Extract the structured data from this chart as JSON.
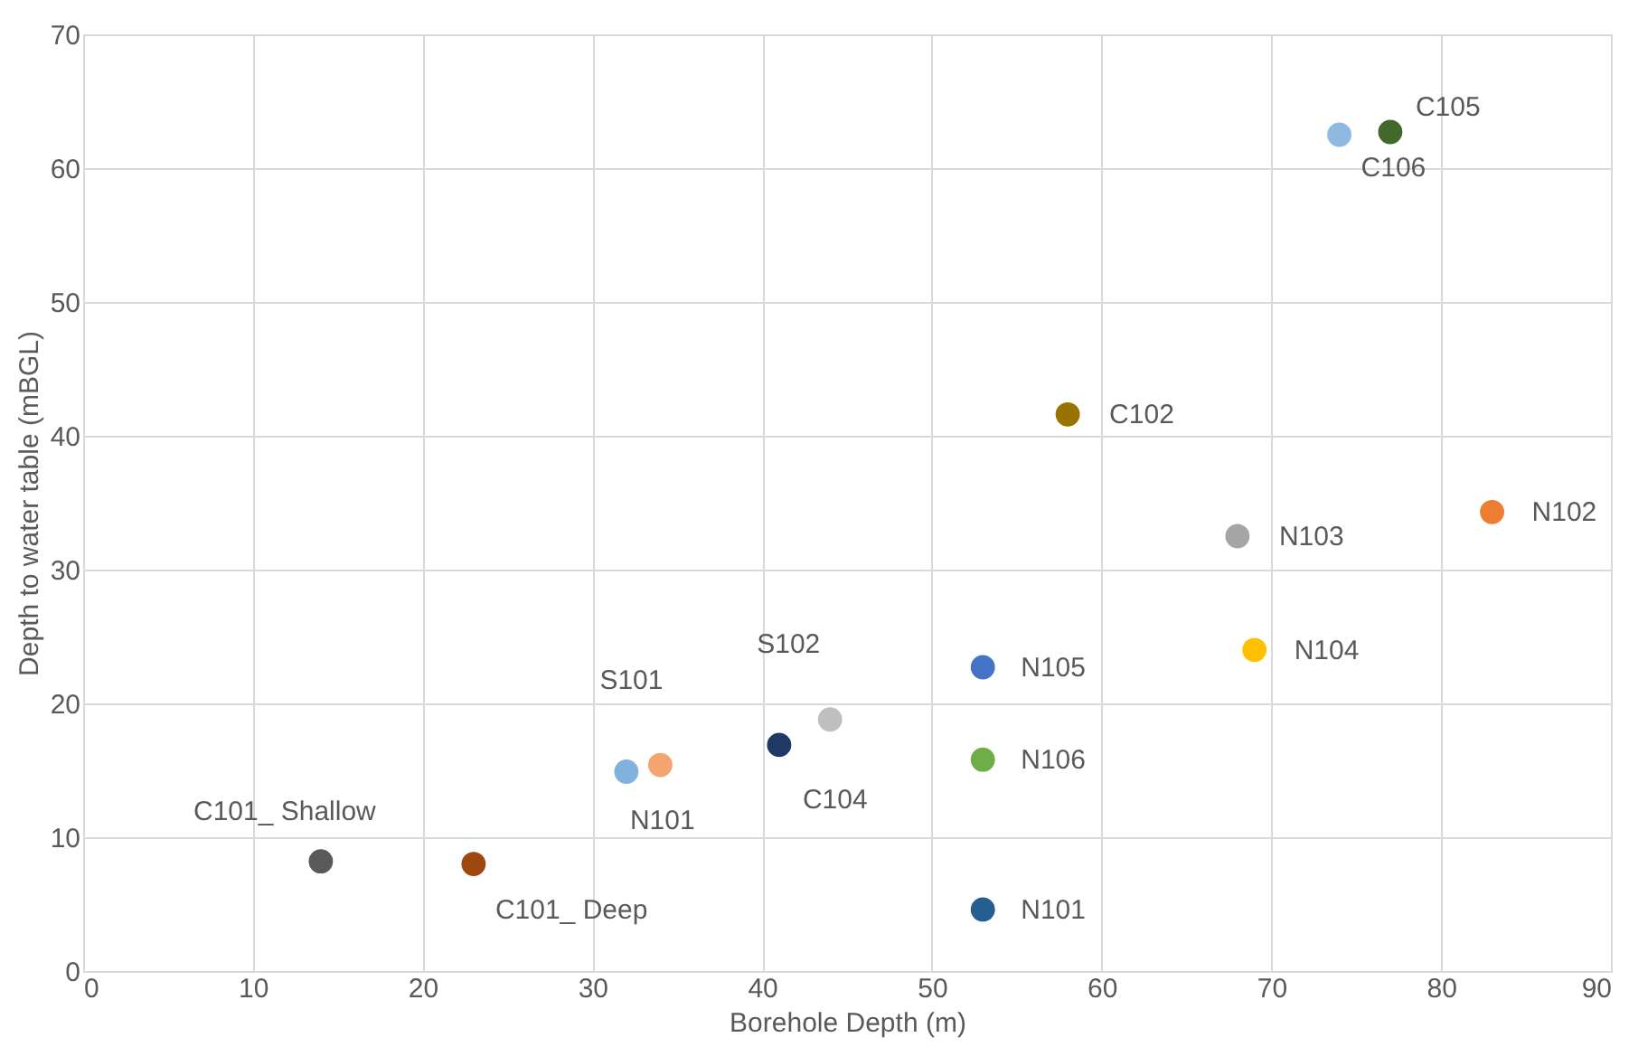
{
  "chart_data": {
    "type": "scatter",
    "xlabel": "Borehole Depth (m)",
    "ylabel": "Depth to water table (mBGL)",
    "xlim": [
      0,
      90
    ],
    "xticks": [
      0,
      10,
      20,
      30,
      40,
      50,
      60,
      70,
      80,
      90
    ],
    "ylim": [
      0,
      70
    ],
    "yticks": [
      0,
      10,
      20,
      30,
      40,
      50,
      60,
      70
    ],
    "grid": true,
    "marker": "circle",
    "series": [
      {
        "name": "C101_ Shallow",
        "color": "#595959",
        "x": [
          14.0
        ],
        "values": [
          8.2
        ]
      },
      {
        "name": "C101_ Deep",
        "color": "#9e480e",
        "x": [
          23.0
        ],
        "values": [
          8.0
        ]
      },
      {
        "name": "N101",
        "color": "#7fb2dd",
        "x": [
          32.0
        ],
        "values": [
          14.9
        ]
      },
      {
        "name": "S101",
        "color": "#f4a46e",
        "x": [
          34.0
        ],
        "values": [
          15.4
        ]
      },
      {
        "name": "C104",
        "color": "#203864",
        "x": [
          41.0
        ],
        "values": [
          16.9
        ]
      },
      {
        "name": "S102",
        "color": "#bfbfbf",
        "x": [
          44.0
        ],
        "values": [
          18.8
        ]
      },
      {
        "name": "N105",
        "color": "#4472c4",
        "x": [
          53.0
        ],
        "values": [
          22.7
        ]
      },
      {
        "name": "N106",
        "color": "#70ad47",
        "x": [
          53.0
        ],
        "values": [
          15.8
        ]
      },
      {
        "name": "N101",
        "color": "#255e91",
        "x": [
          53.0
        ],
        "values": [
          4.6
        ]
      },
      {
        "name": "C102",
        "color": "#997300",
        "x": [
          58.0
        ],
        "values": [
          41.6
        ]
      },
      {
        "name": "N103",
        "color": "#a5a5a5",
        "x": [
          68.0
        ],
        "values": [
          32.5
        ]
      },
      {
        "name": "N104",
        "color": "#ffc000",
        "x": [
          69.0
        ],
        "values": [
          24.0
        ]
      },
      {
        "name": "N102",
        "color": "#ed7d31",
        "x": [
          83.0
        ],
        "values": [
          34.3
        ]
      },
      {
        "name": "C106",
        "color": "#8fb9e0",
        "x": [
          74.0
        ],
        "values": [
          62.5
        ]
      },
      {
        "name": "C105",
        "color": "#43682b",
        "x": [
          77.0
        ],
        "values": [
          62.7
        ]
      }
    ]
  }
}
